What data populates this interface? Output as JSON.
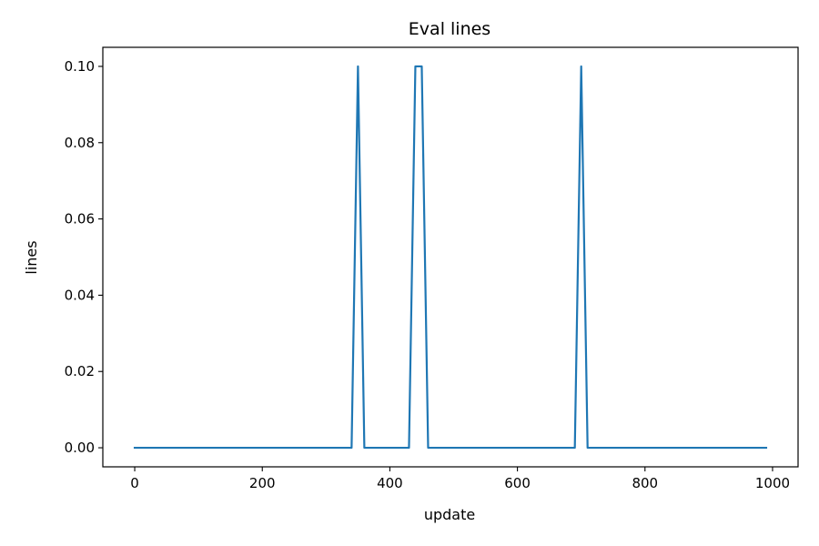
{
  "chart_data": {
    "type": "line",
    "title": "Eval lines",
    "xlabel": "update",
    "ylabel": "lines",
    "xlim": [
      -50,
      1040
    ],
    "ylim": [
      -0.005,
      0.105
    ],
    "xticks": [
      0,
      200,
      400,
      600,
      800,
      1000
    ],
    "xtick_labels": [
      "0",
      "200",
      "400",
      "600",
      "800",
      "1000"
    ],
    "yticks": [
      0.0,
      0.02,
      0.04,
      0.06,
      0.08,
      0.1
    ],
    "ytick_labels": [
      "0.00",
      "0.02",
      "0.04",
      "0.06",
      "0.08",
      "0.10"
    ],
    "grid": false,
    "series": [
      {
        "color": "#1f77b4",
        "x": [
          0,
          340,
          350,
          360,
          430,
          440,
          450,
          460,
          690,
          700,
          710,
          990
        ],
        "y": [
          0,
          0,
          0.1,
          0,
          0,
          0.1,
          0.1,
          0,
          0,
          0.1,
          0,
          0
        ]
      }
    ]
  }
}
